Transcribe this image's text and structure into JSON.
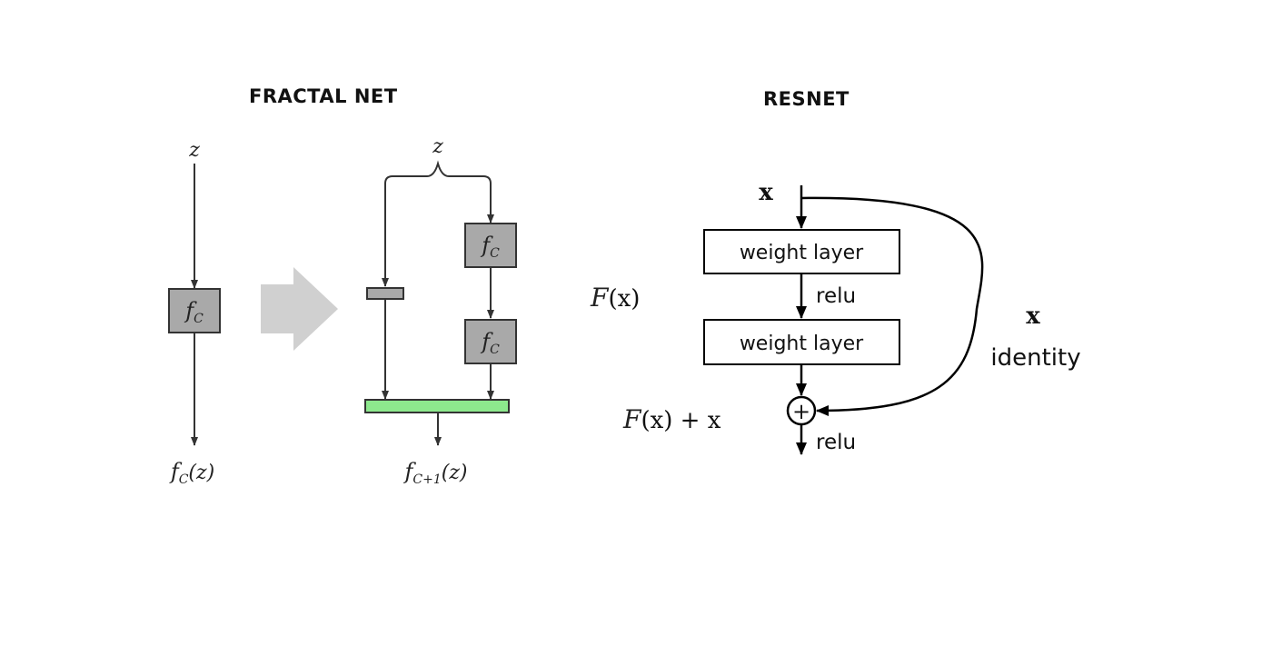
{
  "fractal": {
    "title": "FRACTAL NET",
    "left_input": "z",
    "left_block": "f",
    "left_block_sub": "C",
    "left_output_f": "f",
    "left_output_sub": "C",
    "left_output_arg": "(z)",
    "right_input": "z",
    "upper_block": "f",
    "upper_block_sub": "C",
    "lower_block": "f",
    "lower_block_sub": "C",
    "right_output_f": "f",
    "right_output_sub": "C+1",
    "right_output_arg": "(z)",
    "colors": {
      "block_fill": "#a9a9a9",
      "join_fill": "#8de88d",
      "arrow_gray": "#d0d0d0"
    }
  },
  "resnet": {
    "title": "RESNET",
    "input_label": "x",
    "weight_layer_1": "weight layer",
    "relu_mid": "relu",
    "weight_layer_2": "weight layer",
    "residual_func_script": "F",
    "residual_func_arg": "(x)",
    "sum_script": "F",
    "sum_expr": "(x) + x",
    "plus_symbol": "+",
    "relu_out": "relu",
    "identity_x": "x",
    "identity_label": "identity"
  }
}
